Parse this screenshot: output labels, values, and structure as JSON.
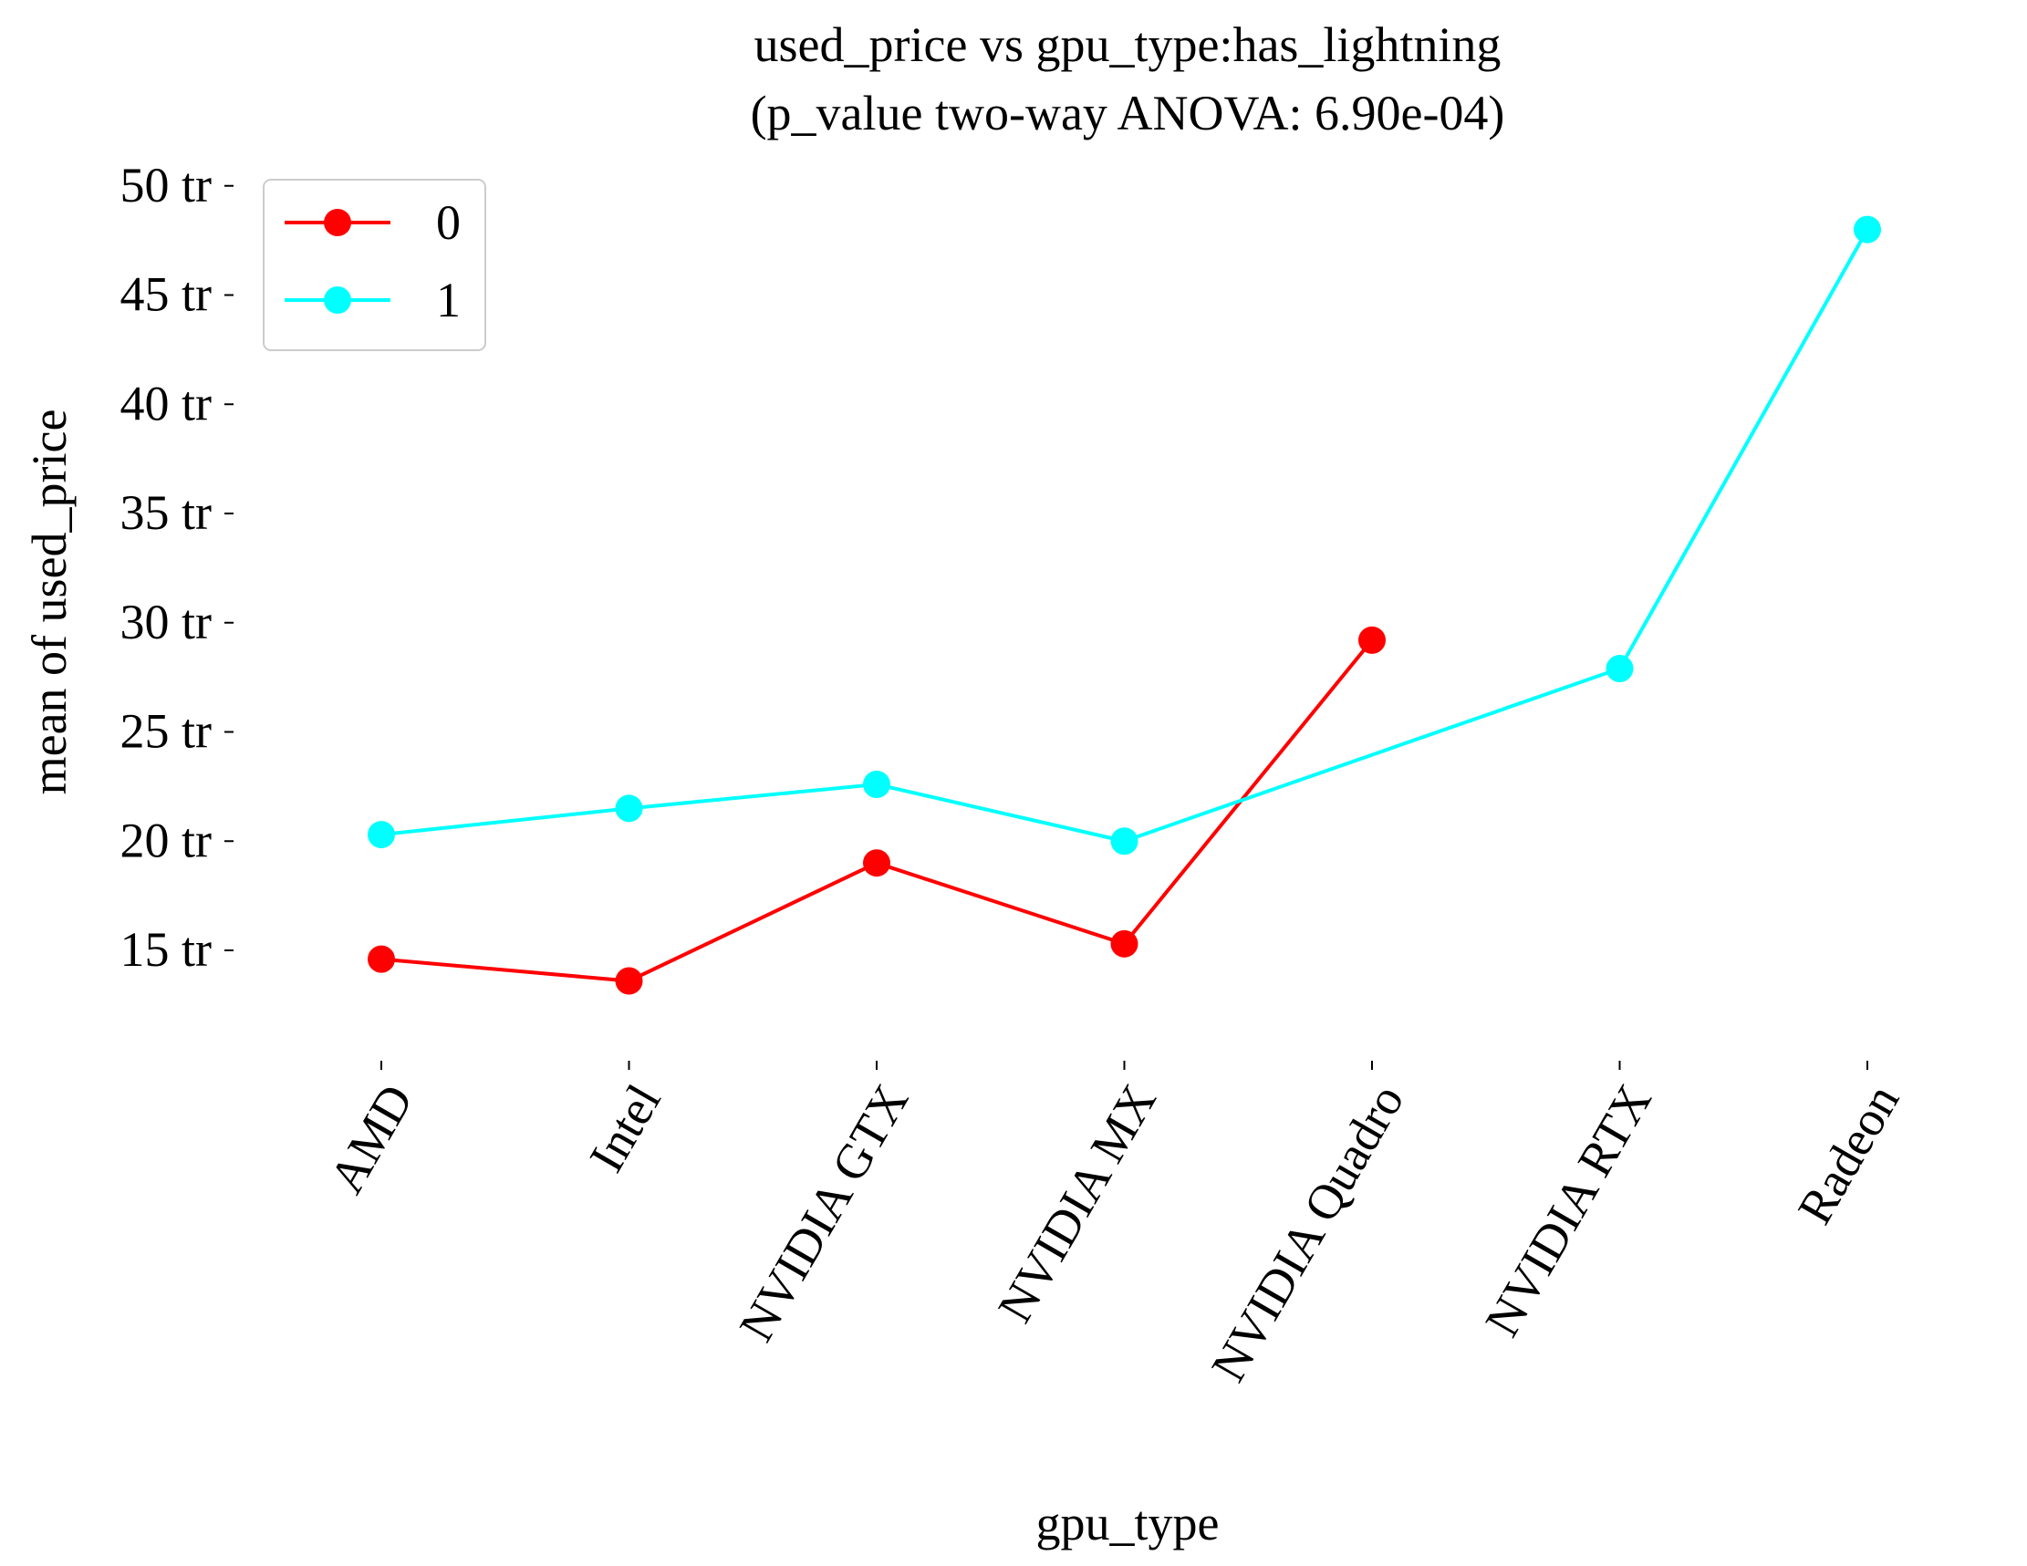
{
  "chart_data": {
    "type": "line",
    "title_line1": "used_price vs gpu_type:has_lightning",
    "title_line2": "(p_value two-way ANOVA: 6.90e-04)",
    "xlabel": "gpu_type",
    "ylabel": "mean of used_price",
    "categories": [
      "AMD",
      "Intel",
      "NVIDIA GTX",
      "NVIDIA MX",
      "NVIDIA Quadro",
      "NVIDIA RTX",
      "Radeon"
    ],
    "y_ticks": [
      15,
      20,
      25,
      30,
      35,
      40,
      45,
      50
    ],
    "y_tick_suffix": " tr",
    "ylim": [
      10,
      50.2
    ],
    "grid": false,
    "legend_position": "top-left",
    "series": [
      {
        "name": "0",
        "color": "#ff0000",
        "values": [
          14.6,
          13.6,
          19.0,
          15.3,
          29.2,
          null,
          null
        ]
      },
      {
        "name": "1",
        "color": "#00ffff",
        "values": [
          20.3,
          21.5,
          22.6,
          20.0,
          null,
          27.9,
          48.0
        ]
      }
    ]
  }
}
